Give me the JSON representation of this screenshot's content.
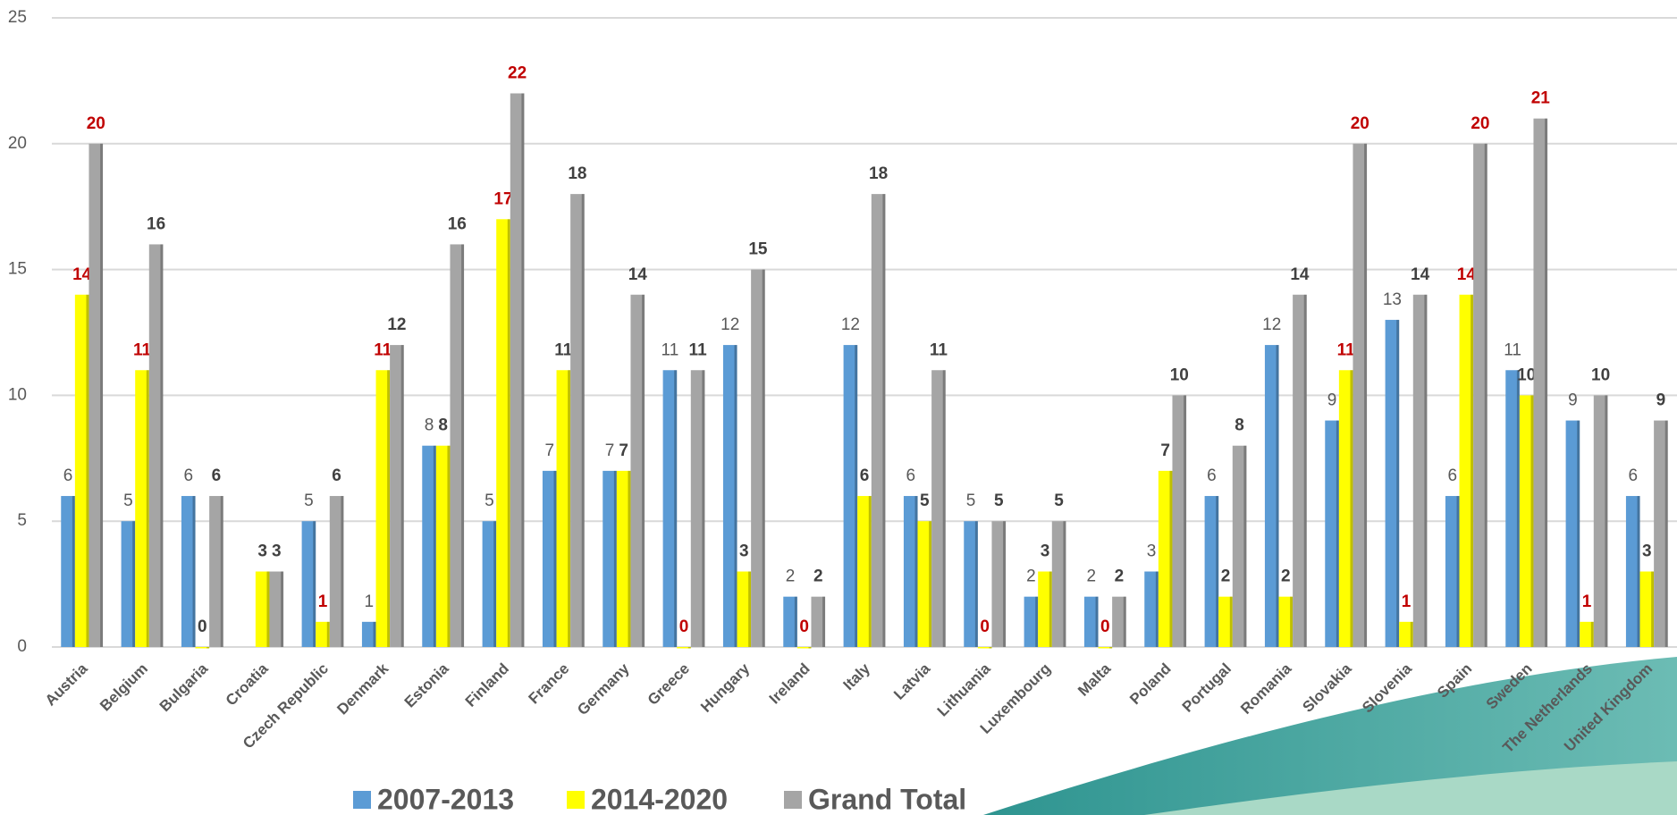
{
  "chart_data": {
    "type": "bar",
    "categories": [
      "Austria",
      "Belgium",
      "Bulgaria",
      "Croatia",
      "Czech Republic",
      "Denmark",
      "Estonia",
      "Finland",
      "France",
      "Germany",
      "Greece",
      "Hungary",
      "Ireland",
      "Italy",
      "Latvia",
      "Lithuania",
      "Luxembourg",
      "Malta",
      "Poland",
      "Portugal",
      "Romania",
      "Slovakia",
      "Slovenia",
      "Spain",
      "Sweden",
      "The Netherlands",
      "United Kingdom"
    ],
    "series": [
      {
        "name": "2007-2013",
        "color": "#5b9bd5",
        "values": [
          6,
          5,
          6,
          null,
          5,
          1,
          8,
          5,
          7,
          7,
          11,
          12,
          2,
          12,
          6,
          5,
          2,
          2,
          3,
          6,
          12,
          9,
          13,
          6,
          11,
          9,
          6
        ],
        "value_label_colors": [
          "#595959",
          "#595959",
          "#595959",
          null,
          "#595959",
          "#595959",
          "#595959",
          "#595959",
          "#595959",
          "#595959",
          "#595959",
          "#595959",
          "#595959",
          "#595959",
          "#595959",
          "#595959",
          "#595959",
          "#595959",
          "#595959",
          "#595959",
          "#595959",
          "#595959",
          "#595959",
          "#595959",
          "#595959",
          "#595959",
          "#595959"
        ]
      },
      {
        "name": "2014-2020",
        "color": "#ffff00",
        "values": [
          14,
          11,
          0,
          3,
          1,
          11,
          8,
          17,
          11,
          7,
          0,
          3,
          0,
          6,
          5,
          0,
          3,
          0,
          7,
          2,
          2,
          11,
          1,
          14,
          10,
          1,
          3
        ],
        "value_label_colors": [
          "#c00000",
          "#c00000",
          "#404040",
          "#404040",
          "#c00000",
          "#c00000",
          "#404040",
          "#c00000",
          "#404040",
          "#404040",
          "#c00000",
          "#404040",
          "#c00000",
          "#404040",
          "#404040",
          "#c00000",
          "#404040",
          "#c00000",
          "#404040",
          "#404040",
          "#404040",
          "#c00000",
          "#c00000",
          "#c00000",
          "#404040",
          "#c00000",
          "#404040"
        ]
      },
      {
        "name": "Grand Total",
        "color": "#a5a5a5",
        "values": [
          20,
          16,
          6,
          3,
          6,
          12,
          16,
          22,
          18,
          14,
          11,
          15,
          2,
          18,
          11,
          5,
          5,
          2,
          10,
          8,
          14,
          20,
          14,
          20,
          21,
          10,
          9
        ],
        "value_label_colors": [
          "#c00000",
          "#404040",
          "#404040",
          "#404040",
          "#404040",
          "#404040",
          "#404040",
          "#c00000",
          "#404040",
          "#404040",
          "#404040",
          "#404040",
          "#404040",
          "#404040",
          "#404040",
          "#404040",
          "#404040",
          "#404040",
          "#404040",
          "#404040",
          "#404040",
          "#c00000",
          "#404040",
          "#c00000",
          "#c00000",
          "#404040",
          "#404040"
        ]
      }
    ],
    "ylim": [
      0,
      25
    ],
    "yticks": [
      0,
      5,
      10,
      15,
      20,
      25
    ],
    "grid": true,
    "legend": "bottom"
  }
}
